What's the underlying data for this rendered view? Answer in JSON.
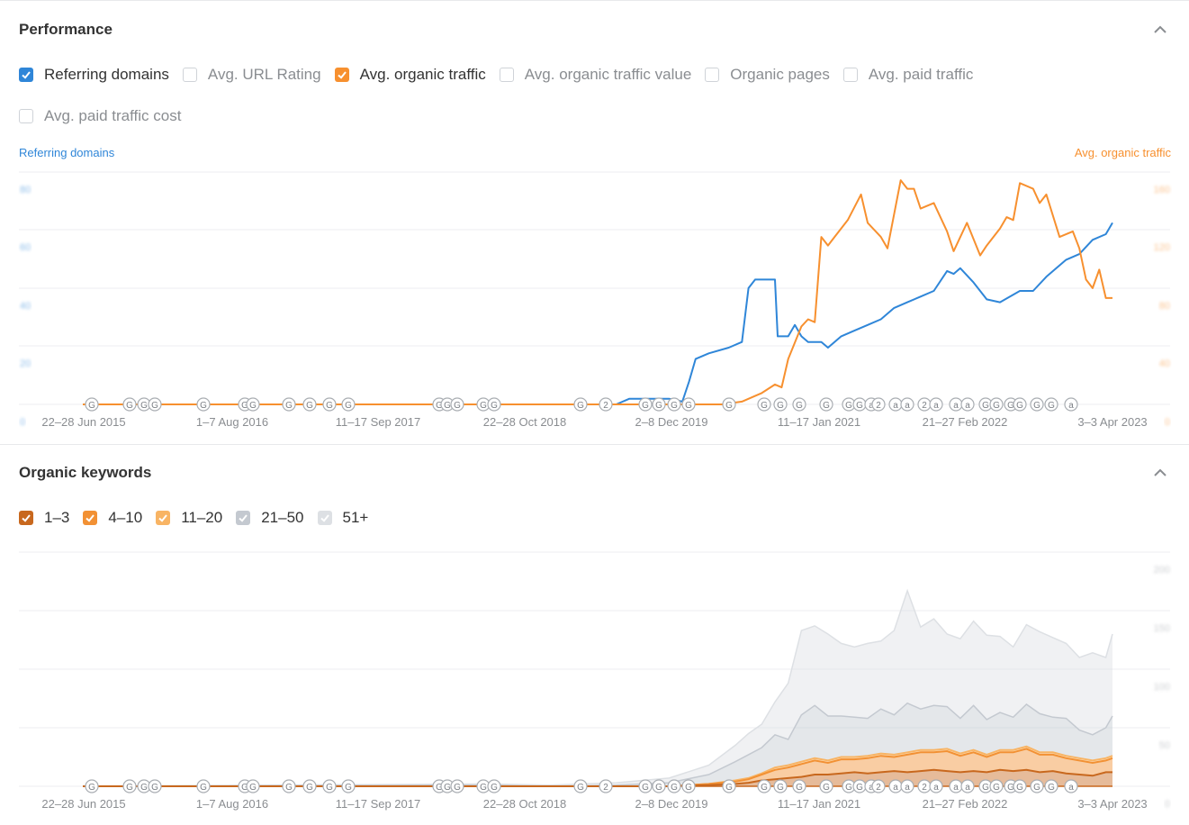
{
  "performance": {
    "title": "Performance",
    "metrics": [
      {
        "label": "Referring domains",
        "checked": true,
        "color": "#2f86d8"
      },
      {
        "label": "Avg. URL Rating",
        "checked": false,
        "color": ""
      },
      {
        "label": "Avg. organic traffic",
        "checked": true,
        "color": "#f7902f"
      },
      {
        "label": "Avg. organic traffic value",
        "checked": false,
        "color": ""
      },
      {
        "label": "Organic pages",
        "checked": false,
        "color": ""
      },
      {
        "label": "Avg. paid traffic",
        "checked": false,
        "color": ""
      },
      {
        "label": "Avg. paid traffic cost",
        "checked": false,
        "color": ""
      }
    ],
    "left_axis_title": "Referring domains",
    "right_axis_title": "Avg. organic traffic"
  },
  "organic_keywords": {
    "title": "Organic keywords",
    "positions": [
      {
        "label": "1–3",
        "checked": true,
        "color": "#c8681e"
      },
      {
        "label": "4–10",
        "checked": true,
        "color": "#f29134"
      },
      {
        "label": "11–20",
        "checked": true,
        "color": "#f8b464"
      },
      {
        "label": "21–50",
        "checked": true,
        "color": "#c4c9d0"
      },
      {
        "label": "51+",
        "checked": true,
        "color": "#dde0e4"
      }
    ]
  },
  "x_ticks": [
    "22–28 Jun 2015",
    "1–7 Aug 2016",
    "11–17 Sep 2017",
    "22–28 Oct 2018",
    "2–8 Dec 2019",
    "11–17 Jan 2021",
    "21–27 Feb 2022",
    "3–3 Apr 2023"
  ],
  "annotation_markers": [
    "G",
    "G",
    "G",
    "G",
    "G",
    "G",
    "G",
    "G",
    "G",
    "G",
    "G",
    "G",
    "G",
    "G",
    "G",
    "G",
    "G",
    "2",
    "G",
    "G",
    "G",
    "G",
    "G",
    "G",
    "G",
    "G",
    "G",
    "G",
    "G",
    "a",
    "2",
    "a",
    "a",
    "2",
    "a",
    "a",
    "a",
    "G",
    "G",
    "G",
    "G",
    "G",
    "G",
    "a"
  ],
  "chart_data": [
    {
      "type": "line",
      "title": "",
      "x_ticks": [
        "22–28 Jun 2015",
        "1–7 Aug 2016",
        "11–17 Sep 2017",
        "22–28 Oct 2018",
        "2–8 Dec 2019",
        "11–17 Jan 2021",
        "21–27 Feb 2022",
        "3–3 Apr 2023"
      ],
      "x_range": [
        2015.47,
        2023.25
      ],
      "left_axis": {
        "label": "Referring domains",
        "ylim": [
          0,
          80
        ],
        "ticks": [
          "0",
          "20",
          "40",
          "60",
          "80"
        ],
        "ticks_blurred": true
      },
      "right_axis": {
        "label": "Avg. organic traffic",
        "ylim": [
          0,
          160
        ],
        "ticks": [
          "0",
          "40",
          "80",
          "120",
          "160"
        ],
        "ticks_blurred": true
      },
      "grid": true,
      "series": [
        {
          "name": "Referring domains",
          "axis": "left",
          "color": "#2f86d8",
          "x": [
            2015.47,
            2019.5,
            2019.6,
            2019.9,
            2020.0,
            2020.05,
            2020.1,
            2020.2,
            2020.35,
            2020.45,
            2020.5,
            2020.55,
            2020.7,
            2020.72,
            2020.8,
            2020.85,
            2020.9,
            2020.95,
            2021.0,
            2021.05,
            2021.1,
            2021.2,
            2021.3,
            2021.4,
            2021.5,
            2021.6,
            2021.7,
            2021.8,
            2021.9,
            2022.0,
            2022.05,
            2022.1,
            2022.2,
            2022.3,
            2022.4,
            2022.55,
            2022.65,
            2022.75,
            2022.85,
            2022.9,
            2023.0,
            2023.1,
            2023.2,
            2023.25
          ],
          "values": [
            0,
            0,
            2,
            2,
            1,
            8,
            16,
            18,
            20,
            22,
            41,
            44,
            44,
            24,
            24,
            28,
            24,
            22,
            22,
            22,
            20,
            24,
            26,
            28,
            30,
            34,
            36,
            38,
            40,
            47,
            46,
            48,
            43,
            37,
            36,
            40,
            40,
            45,
            49,
            51,
            53,
            58,
            60,
            64
          ]
        },
        {
          "name": "Avg. organic traffic",
          "axis": "right",
          "color": "#f7902f",
          "x": [
            2015.47,
            2020.3,
            2020.45,
            2020.55,
            2020.6,
            2020.7,
            2020.75,
            2020.8,
            2020.9,
            2020.95,
            2021.0,
            2021.05,
            2021.1,
            2021.15,
            2021.25,
            2021.35,
            2021.4,
            2021.5,
            2021.55,
            2021.65,
            2021.7,
            2021.75,
            2021.8,
            2021.9,
            2022.0,
            2022.05,
            2022.15,
            2022.25,
            2022.3,
            2022.4,
            2022.45,
            2022.5,
            2022.55,
            2022.65,
            2022.7,
            2022.75,
            2022.85,
            2022.95,
            2023.0,
            2023.05,
            2023.1,
            2023.15,
            2023.2,
            2023.25
          ],
          "values": [
            0,
            0,
            2,
            6,
            8,
            14,
            12,
            32,
            55,
            60,
            58,
            118,
            112,
            118,
            130,
            148,
            128,
            118,
            110,
            158,
            152,
            152,
            138,
            142,
            122,
            108,
            128,
            105,
            112,
            124,
            132,
            130,
            156,
            152,
            142,
            148,
            118,
            122,
            110,
            88,
            82,
            95,
            75,
            75
          ]
        }
      ]
    },
    {
      "type": "area",
      "title": "",
      "stacked": true,
      "x_ticks": [
        "22–28 Jun 2015",
        "1–7 Aug 2016",
        "11–17 Sep 2017",
        "22–28 Oct 2018",
        "2–8 Dec 2019",
        "11–17 Jan 2021",
        "21–27 Feb 2022",
        "3–3 Apr 2023"
      ],
      "x_range": [
        2015.47,
        2023.25
      ],
      "right_axis": {
        "ylim": [
          0,
          200
        ],
        "ticks": [
          "0",
          "50",
          "100",
          "150",
          "200"
        ],
        "ticks_blurred": true
      },
      "grid": true,
      "x": [
        2015.47,
        2018.5,
        2019.0,
        2019.5,
        2019.9,
        2020.2,
        2020.4,
        2020.5,
        2020.6,
        2020.7,
        2020.8,
        2020.9,
        2021.0,
        2021.1,
        2021.2,
        2021.3,
        2021.4,
        2021.5,
        2021.6,
        2021.7,
        2021.8,
        2021.9,
        2022.0,
        2022.1,
        2022.2,
        2022.3,
        2022.4,
        2022.5,
        2022.6,
        2022.7,
        2022.8,
        2022.9,
        2023.0,
        2023.1,
        2023.2,
        2023.25
      ],
      "series": [
        {
          "name": "1–3",
          "color": "#c8681e",
          "values": [
            0,
            0,
            0,
            0,
            0,
            1,
            2,
            3,
            5,
            6,
            7,
            8,
            10,
            10,
            11,
            12,
            11,
            12,
            13,
            12,
            13,
            14,
            13,
            12,
            13,
            12,
            14,
            13,
            14,
            12,
            13,
            11,
            10,
            9,
            12,
            12
          ]
        },
        {
          "name": "4–10",
          "color": "#f29134",
          "values": [
            0,
            0,
            0,
            0,
            0,
            1,
            2,
            3,
            5,
            8,
            9,
            11,
            12,
            10,
            12,
            11,
            13,
            14,
            12,
            15,
            16,
            15,
            17,
            14,
            16,
            13,
            15,
            16,
            18,
            15,
            14,
            13,
            12,
            11,
            10,
            12
          ]
        },
        {
          "name": "11–20",
          "color": "#f8b464",
          "values": [
            0,
            0,
            0,
            0,
            0,
            0,
            1,
            1,
            1,
            2,
            2,
            2,
            2,
            2,
            2,
            2,
            2,
            2,
            2,
            2,
            2,
            2,
            2,
            2,
            2,
            2,
            2,
            2,
            2,
            2,
            2,
            2,
            2,
            2,
            2,
            2
          ]
        },
        {
          "name": "21–50",
          "color": "#c4c9d0",
          "values": [
            0,
            1,
            0,
            1,
            3,
            8,
            16,
            20,
            22,
            28,
            22,
            40,
            45,
            38,
            35,
            34,
            32,
            38,
            34,
            42,
            35,
            38,
            36,
            30,
            38,
            30,
            32,
            28,
            36,
            33,
            30,
            32,
            24,
            22,
            26,
            34
          ]
        },
        {
          "name": "51+",
          "color": "#dde0e4",
          "values": [
            0,
            1,
            1,
            2,
            4,
            8,
            14,
            18,
            20,
            28,
            48,
            72,
            68,
            70,
            62,
            60,
            64,
            58,
            72,
            96,
            70,
            74,
            62,
            68,
            72,
            72,
            65,
            60,
            68,
            70,
            68,
            64,
            62,
            70,
            60,
            70
          ]
        }
      ]
    }
  ]
}
